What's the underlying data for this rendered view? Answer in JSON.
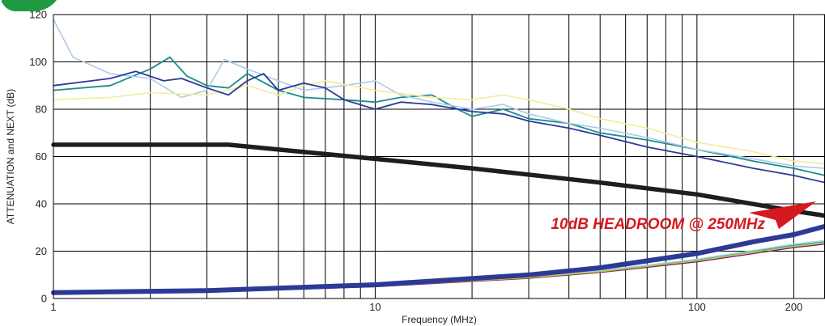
{
  "chart_data": {
    "type": "line",
    "title": "",
    "xlabel": "Frequency (MHz)",
    "ylabel": "ATTENUATION and NEXT (dB)",
    "xscale": "log",
    "xlim": [
      1,
      250
    ],
    "ylim": [
      0,
      120
    ],
    "grid": true,
    "x_ticks": [
      {
        "value": 1,
        "label": "1"
      },
      {
        "value": 10,
        "label": "10"
      },
      {
        "value": 100,
        "label": "100"
      },
      {
        "value": 200,
        "label": "200"
      }
    ],
    "y_ticks": [
      {
        "value": 0,
        "label": "0"
      },
      {
        "value": 20,
        "label": "20"
      },
      {
        "value": 40,
        "label": "40"
      },
      {
        "value": 60,
        "label": "60"
      },
      {
        "value": 80,
        "label": "80"
      },
      {
        "value": 100,
        "label": "100"
      },
      {
        "value": 120,
        "label": "120"
      }
    ],
    "annotation": {
      "text": "10dB HEADROOM @ 250MHz"
    },
    "series": [
      {
        "color": "#1e1e1e",
        "width": 5.5,
        "points": [
          [
            1,
            65
          ],
          [
            3.5,
            65
          ],
          [
            10,
            59
          ],
          [
            20,
            55
          ],
          [
            50,
            49
          ],
          [
            100,
            44
          ],
          [
            200,
            37
          ],
          [
            250,
            35
          ]
        ]
      },
      {
        "color": "#2c3a96",
        "width": 6,
        "points": [
          [
            1,
            2.5
          ],
          [
            3,
            3.3
          ],
          [
            10,
            5.8
          ],
          [
            30,
            10
          ],
          [
            50,
            13
          ],
          [
            100,
            19
          ],
          [
            150,
            24
          ],
          [
            200,
            27
          ],
          [
            250,
            30.5
          ]
        ]
      },
      {
        "color": "#7a1f6e",
        "width": 1.4,
        "points": [
          [
            1,
            2
          ],
          [
            3,
            2.8
          ],
          [
            10,
            5
          ],
          [
            30,
            8.5
          ],
          [
            50,
            11
          ],
          [
            100,
            15.5
          ],
          [
            150,
            19
          ],
          [
            200,
            21.5
          ],
          [
            250,
            23
          ]
        ]
      },
      {
        "color": "#2aa7a7",
        "width": 1.4,
        "points": [
          [
            1,
            2.2
          ],
          [
            3,
            3
          ],
          [
            10,
            5.3
          ],
          [
            30,
            9
          ],
          [
            50,
            11.6
          ],
          [
            100,
            16.3
          ],
          [
            150,
            20
          ],
          [
            200,
            22.5
          ],
          [
            250,
            24
          ]
        ]
      },
      {
        "color": "#c9c224",
        "width": 1.4,
        "points": [
          [
            1,
            2.1
          ],
          [
            3,
            2.9
          ],
          [
            10,
            5.2
          ],
          [
            30,
            8.8
          ],
          [
            50,
            11.3
          ],
          [
            100,
            16
          ],
          [
            150,
            19.6
          ],
          [
            200,
            22
          ],
          [
            250,
            23.6
          ]
        ]
      },
      {
        "color": "#9dd6ea",
        "width": 1.4,
        "points": [
          [
            1,
            2.3
          ],
          [
            3,
            3.1
          ],
          [
            10,
            5.4
          ],
          [
            30,
            9.2
          ],
          [
            50,
            11.8
          ],
          [
            100,
            16.6
          ],
          [
            150,
            20.3
          ],
          [
            200,
            23
          ],
          [
            250,
            24.5
          ]
        ]
      },
      {
        "color": "#1c8c8c",
        "width": 1.8,
        "points": [
          [
            1,
            88
          ],
          [
            1.5,
            90
          ],
          [
            2,
            97
          ],
          [
            2.3,
            102
          ],
          [
            2.6,
            94
          ],
          [
            3,
            90
          ],
          [
            3.5,
            89
          ],
          [
            4,
            95
          ],
          [
            5,
            88
          ],
          [
            6,
            85
          ],
          [
            8,
            84
          ],
          [
            10,
            83
          ],
          [
            12,
            85
          ],
          [
            15,
            86
          ],
          [
            18,
            80
          ],
          [
            20,
            77
          ],
          [
            25,
            80
          ],
          [
            30,
            76
          ],
          [
            40,
            74
          ],
          [
            50,
            70
          ],
          [
            70,
            67
          ],
          [
            100,
            63
          ],
          [
            150,
            58
          ],
          [
            200,
            55
          ],
          [
            250,
            52
          ]
        ]
      },
      {
        "color": "#a9cbe8",
        "width": 1.6,
        "points": [
          [
            1,
            118
          ],
          [
            1.15,
            102
          ],
          [
            1.5,
            95
          ],
          [
            2,
            93
          ],
          [
            2.5,
            85
          ],
          [
            3,
            88
          ],
          [
            3.4,
            101
          ],
          [
            4,
            97
          ],
          [
            5,
            92
          ],
          [
            6,
            88
          ],
          [
            8,
            90
          ],
          [
            10,
            92
          ],
          [
            12,
            86
          ],
          [
            15,
            83
          ],
          [
            20,
            80
          ],
          [
            25,
            82
          ],
          [
            30,
            78
          ],
          [
            40,
            74
          ],
          [
            50,
            72
          ],
          [
            70,
            68
          ],
          [
            100,
            63
          ],
          [
            150,
            59
          ],
          [
            200,
            56
          ],
          [
            250,
            55
          ]
        ]
      },
      {
        "color": "#f2ec9a",
        "width": 1.6,
        "points": [
          [
            1,
            84
          ],
          [
            1.5,
            85
          ],
          [
            2,
            87
          ],
          [
            3,
            86
          ],
          [
            4,
            90
          ],
          [
            5,
            86
          ],
          [
            6,
            90
          ],
          [
            7,
            92
          ],
          [
            10,
            88
          ],
          [
            15,
            85
          ],
          [
            20,
            84
          ],
          [
            25,
            86
          ],
          [
            30,
            84
          ],
          [
            40,
            80
          ],
          [
            50,
            76
          ],
          [
            70,
            72
          ],
          [
            100,
            66
          ],
          [
            150,
            62
          ],
          [
            200,
            58
          ],
          [
            250,
            57
          ]
        ]
      },
      {
        "color": "#2b3a9c",
        "width": 1.8,
        "points": [
          [
            1,
            90
          ],
          [
            1.5,
            93
          ],
          [
            1.8,
            96
          ],
          [
            2.2,
            92
          ],
          [
            2.5,
            93
          ],
          [
            3,
            89
          ],
          [
            3.5,
            86
          ],
          [
            4,
            92
          ],
          [
            4.5,
            95
          ],
          [
            5,
            88
          ],
          [
            6,
            91
          ],
          [
            7,
            89
          ],
          [
            8,
            84
          ],
          [
            10,
            80
          ],
          [
            12,
            83
          ],
          [
            15,
            82
          ],
          [
            20,
            79
          ],
          [
            25,
            78
          ],
          [
            30,
            75
          ],
          [
            40,
            72
          ],
          [
            50,
            69
          ],
          [
            70,
            64
          ],
          [
            100,
            60
          ],
          [
            150,
            55
          ],
          [
            200,
            52
          ],
          [
            250,
            49
          ]
        ]
      }
    ]
  }
}
